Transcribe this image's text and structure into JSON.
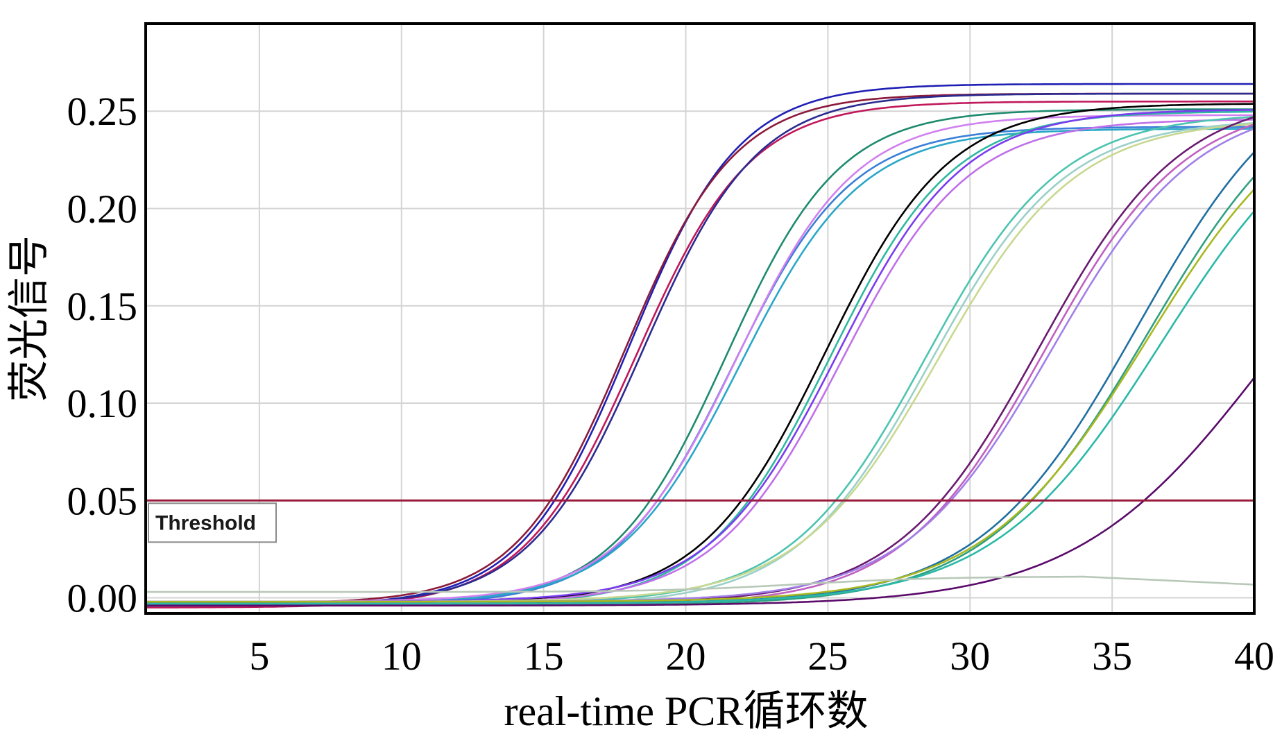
{
  "chart_data": {
    "type": "line",
    "title": "",
    "xlabel": "real-time PCR循环数",
    "ylabel": "荧光信号",
    "xlim": [
      1,
      40
    ],
    "ylim": [
      -0.008,
      0.295
    ],
    "x_ticks": [
      5,
      10,
      15,
      20,
      25,
      30,
      35,
      40
    ],
    "y_ticks": [
      0.0,
      0.05,
      0.1,
      0.15,
      0.2,
      0.25
    ],
    "y_tick_labels": [
      "0.00",
      "0.05",
      "0.10",
      "0.15",
      "0.20",
      "0.25"
    ],
    "grid": true,
    "threshold": {
      "label": "Threshold",
      "value": 0.05,
      "color": "#9b1b3c"
    },
    "series": [
      {
        "color": "#1f1fb4",
        "ct": 15.2,
        "plateau": 0.268,
        "k": 0.52,
        "baseline": -0.004
      },
      {
        "color": "#8b1a3a",
        "ct": 15.1,
        "plateau": 0.262,
        "k": 0.52,
        "baseline": -0.003
      },
      {
        "color": "#c0185a",
        "ct": 15.4,
        "plateau": 0.26,
        "k": 0.5,
        "baseline": -0.005
      },
      {
        "color": "#2a2a90",
        "ct": 15.6,
        "plateau": 0.263,
        "k": 0.5,
        "baseline": -0.004
      },
      {
        "color": "#1d8a6e",
        "ct": 18.6,
        "plateau": 0.254,
        "k": 0.5,
        "baseline": -0.003
      },
      {
        "color": "#3a7fd8",
        "ct": 18.8,
        "plateau": 0.246,
        "k": 0.48,
        "baseline": -0.004
      },
      {
        "color": "#d080f0",
        "ct": 18.9,
        "plateau": 0.25,
        "k": 0.48,
        "baseline": -0.002
      },
      {
        "color": "#2aa7c8",
        "ct": 19.0,
        "plateau": 0.244,
        "k": 0.47,
        "baseline": -0.003
      },
      {
        "color": "#000000",
        "ct": 21.8,
        "plateau": 0.257,
        "k": 0.46,
        "baseline": -0.003
      },
      {
        "color": "#2eb8a0",
        "ct": 22.0,
        "plateau": 0.254,
        "k": 0.46,
        "baseline": -0.004
      },
      {
        "color": "#7a3cf0",
        "ct": 22.2,
        "plateau": 0.253,
        "k": 0.45,
        "baseline": -0.002
      },
      {
        "color": "#c070e8",
        "ct": 22.4,
        "plateau": 0.249,
        "k": 0.45,
        "baseline": -0.003
      },
      {
        "color": "#4cc4b0",
        "ct": 25.1,
        "plateau": 0.252,
        "k": 0.42,
        "baseline": -0.003
      },
      {
        "color": "#9ad0c8",
        "ct": 25.3,
        "plateau": 0.25,
        "k": 0.42,
        "baseline": -0.004
      },
      {
        "color": "#c8d890",
        "ct": 25.5,
        "plateau": 0.248,
        "k": 0.41,
        "baseline": -0.002
      },
      {
        "color": "#6a1a70",
        "ct": 28.8,
        "plateau": 0.262,
        "k": 0.4,
        "baseline": -0.003
      },
      {
        "color": "#c060c0",
        "ct": 29.0,
        "plateau": 0.26,
        "k": 0.4,
        "baseline": -0.004
      },
      {
        "color": "#a080e8",
        "ct": 29.2,
        "plateau": 0.258,
        "k": 0.39,
        "baseline": -0.002
      },
      {
        "color": "#1f6fa0",
        "ct": 31.6,
        "plateau": 0.285,
        "k": 0.36,
        "baseline": -0.003
      },
      {
        "color": "#2fa080",
        "ct": 31.9,
        "plateau": 0.28,
        "k": 0.35,
        "baseline": -0.004
      },
      {
        "color": "#a8b820",
        "ct": 32.0,
        "plateau": 0.268,
        "k": 0.35,
        "baseline": -0.002
      },
      {
        "color": "#2ab8a8",
        "ct": 32.4,
        "plateau": 0.268,
        "k": 0.34,
        "baseline": -0.003
      },
      {
        "color": "#5a0a6a",
        "ct": 35.8,
        "plateau": 0.25,
        "k": 0.3,
        "baseline": -0.004
      },
      {
        "color": "#b8c8b8",
        "ct": 0,
        "plateau": 0,
        "k": 0,
        "baseline": 0.003,
        "flat": true
      }
    ]
  }
}
